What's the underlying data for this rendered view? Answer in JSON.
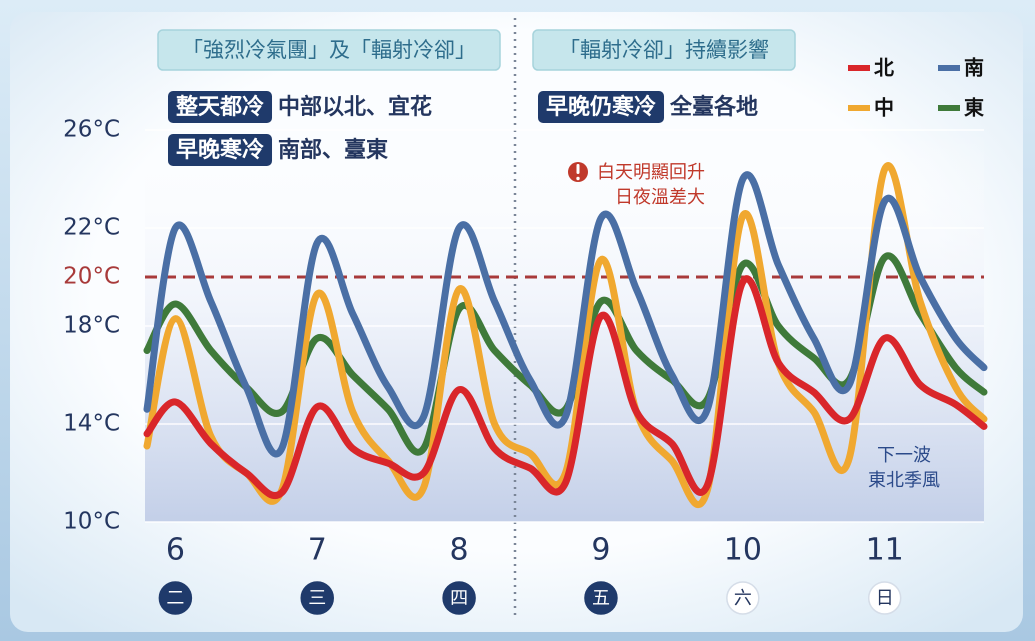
{
  "chart_data": {
    "type": "line",
    "header_boxes": [
      "「強烈冷氣團」及「輻射冷卻」",
      "「輻射冷卻」持續影響"
    ],
    "tags": [
      {
        "tag": "整天都冷",
        "text": "中部以北、宜花"
      },
      {
        "tag": "早晚寒冷",
        "text": "南部、臺東"
      },
      {
        "tag": "早晚仍寒冷",
        "text": "全臺各地"
      }
    ],
    "annotations": [
      {
        "lines": [
          "白天明顯回升",
          "日夜溫差大"
        ],
        "color": "#c0392b"
      },
      {
        "lines": [
          "下一波",
          "東北季風"
        ],
        "color": "#2b4a8a"
      }
    ],
    "x": [
      5.8,
      6,
      6.25,
      6.5,
      6.75,
      7,
      7.25,
      7.5,
      7.75,
      8,
      8.25,
      8.5,
      8.75,
      9,
      9.25,
      9.5,
      9.75,
      10,
      10.25,
      10.5,
      10.75,
      11,
      11.25,
      11.5,
      11.7
    ],
    "xlim": [
      5.8,
      11.7
    ],
    "xticks": [
      6,
      7,
      8,
      9,
      10,
      11
    ],
    "x_tick_weekdays": [
      "二",
      "三",
      "四",
      "五",
      "六",
      "日"
    ],
    "weekday_filled": [
      true,
      true,
      true,
      true,
      false,
      false
    ],
    "ylim": [
      10,
      26
    ],
    "yticks": [
      {
        "value": 10,
        "label": "10°C"
      },
      {
        "value": 14,
        "label": "14°C"
      },
      {
        "value": 18,
        "label": "18°C"
      },
      {
        "value": 22,
        "label": "22°C"
      },
      {
        "value": 26,
        "label": "26°C"
      }
    ],
    "reference_line": {
      "value": 20,
      "label": "20°C",
      "color": "#a83a3a"
    },
    "grid": true,
    "legend": "top-right",
    "series": [
      {
        "name": "北",
        "color": "#d9262a",
        "values": [
          13.6,
          14.9,
          13.2,
          12.0,
          11.2,
          14.7,
          13.0,
          12.4,
          12.0,
          15.4,
          13.0,
          12.2,
          11.6,
          18.4,
          14.5,
          13.2,
          11.5,
          19.8,
          16.5,
          15.3,
          14.2,
          17.5,
          15.6,
          14.8,
          13.9
        ]
      },
      {
        "name": "南",
        "color": "#4a6fa5",
        "values": [
          14.6,
          22.0,
          19.0,
          15.5,
          13.0,
          21.4,
          18.5,
          15.5,
          14.3,
          22.0,
          19.0,
          15.8,
          14.3,
          22.4,
          19.5,
          16.0,
          14.6,
          24.0,
          20.5,
          17.5,
          15.6,
          23.1,
          20.0,
          17.5,
          16.3
        ]
      },
      {
        "name": "中",
        "color": "#f0a830",
        "values": [
          13.1,
          18.3,
          13.5,
          12.0,
          11.3,
          19.3,
          14.5,
          12.5,
          11.4,
          19.5,
          14.0,
          12.8,
          12.0,
          20.7,
          14.5,
          12.5,
          11.3,
          22.5,
          16.5,
          14.5,
          12.6,
          24.4,
          19.0,
          15.5,
          14.2
        ]
      },
      {
        "name": "東",
        "color": "#3f7a3a",
        "values": [
          17.0,
          18.9,
          17.0,
          15.5,
          14.5,
          17.5,
          16.0,
          14.6,
          13.0,
          18.7,
          17.0,
          15.6,
          14.6,
          19.0,
          17.0,
          15.8,
          15.0,
          20.5,
          18.0,
          16.7,
          15.8,
          20.8,
          18.5,
          16.3,
          15.3
        ]
      }
    ]
  }
}
